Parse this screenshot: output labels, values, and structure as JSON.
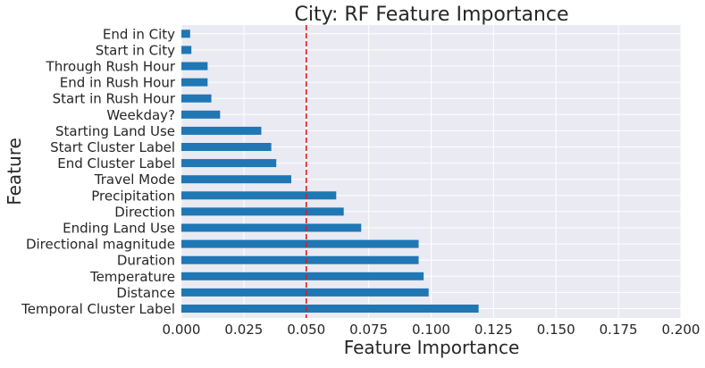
{
  "chart_data": {
    "type": "bar",
    "orientation": "horizontal",
    "title": "City: RF Feature Importance",
    "xlabel": "Feature Importance",
    "ylabel": "Feature",
    "xlim": [
      0,
      0.2
    ],
    "xticks": [
      "0.000",
      "0.025",
      "0.050",
      "0.075",
      "0.100",
      "0.125",
      "0.150",
      "0.175",
      "0.200"
    ],
    "xtick_values": [
      0,
      0.025,
      0.05,
      0.075,
      0.1,
      0.125,
      0.15,
      0.175,
      0.2
    ],
    "grid": true,
    "reference_line": {
      "x": 0.05,
      "style": "dashed",
      "color": "#e41a1c"
    },
    "bar_color": "#1f77b4",
    "background_color": "#eaeaf2",
    "categories": [
      "Temporal Cluster Label",
      "Distance",
      "Temperature",
      "Duration",
      "Directional magnitude",
      "Ending Land Use",
      "Direction",
      "Precipitation",
      "Travel Mode",
      "End Cluster Label",
      "Start Cluster Label",
      "Starting Land Use",
      "Weekday?",
      "Start in Rush Hour",
      "End in Rush Hour",
      "Through Rush Hour",
      "Start in City",
      "End in City"
    ],
    "values": [
      0.119,
      0.099,
      0.097,
      0.095,
      0.095,
      0.072,
      0.065,
      0.062,
      0.044,
      0.038,
      0.036,
      0.032,
      0.0155,
      0.012,
      0.0105,
      0.0105,
      0.004,
      0.0035
    ]
  }
}
